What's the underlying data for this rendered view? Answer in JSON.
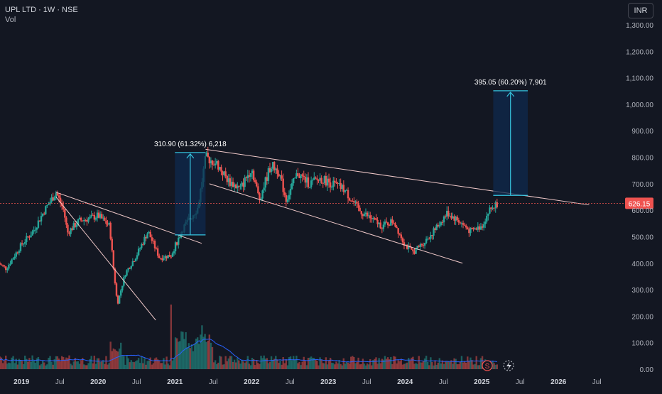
{
  "header": {
    "symbol_line": "UPL LTD · 1W · NSE",
    "volume_label": "Vol"
  },
  "currency_button": "INR",
  "colors": {
    "background": "#131722",
    "up": "#26a69a",
    "down": "#ef5350",
    "trendline": "#f0c9c9",
    "measure_line": "#36c5e0",
    "measure_fill": "#0f2a4d",
    "volume_ma": "#2962ff",
    "price_label_bg": "#ef5350"
  },
  "icons": [
    "dividend-s-icon",
    "lightning-icon"
  ],
  "chart_data": {
    "type": "candlestick",
    "price_axis_ticks": [
      "1,300.00",
      "1,200.00",
      "1,100.00",
      "1,000.00",
      "900.00",
      "800.00",
      "700.00",
      "600.00",
      "500.00",
      "400.00",
      "300.00",
      "200.00",
      "100.00",
      "0.00"
    ],
    "time_axis_ticks": [
      "2019",
      "Jul",
      "2020",
      "Jul",
      "2021",
      "Jul",
      "2022",
      "Jul",
      "2023",
      "Jul",
      "2024",
      "Jul",
      "2025",
      "Jul",
      "2026",
      "Jul"
    ],
    "last_price": "626.15",
    "ylim": [
      0,
      1300
    ],
    "xlim": [
      "2018-09",
      "2026-09"
    ],
    "annotations": [
      {
        "text": "310.90 (61.32%) 6,218",
        "from_price": 507,
        "to_price": 818,
        "start": "2021.0",
        "end": "2021.4"
      },
      {
        "text": "395.05 (60.20%) 7,901",
        "from_price": 656,
        "to_price": 1051,
        "start": "2025.15",
        "end": "2025.6"
      }
    ],
    "weekly_close_path": [
      [
        "2018.7",
        400
      ],
      [
        "2018.8",
        380
      ],
      [
        "2019.0",
        470
      ],
      [
        "2019.15",
        520
      ],
      [
        "2019.3",
        600
      ],
      [
        "2019.45",
        668
      ],
      [
        "2019.55",
        600
      ],
      [
        "2019.6",
        515
      ],
      [
        "2019.75",
        560
      ],
      [
        "2019.9",
        570
      ],
      [
        "2020.0",
        580
      ],
      [
        "2020.15",
        540
      ],
      [
        "2020.2",
        380
      ],
      [
        "2020.25",
        245
      ],
      [
        "2020.35",
        360
      ],
      [
        "2020.5",
        430
      ],
      [
        "2020.65",
        520
      ],
      [
        "2020.8",
        420
      ],
      [
        "2020.95",
        430
      ],
      [
        "2021.1",
        530
      ],
      [
        "2021.3",
        610
      ],
      [
        "2021.4",
        800
      ],
      [
        "2021.55",
        775
      ],
      [
        "2021.7",
        710
      ],
      [
        "2021.85",
        680
      ],
      [
        "2022.0",
        760
      ],
      [
        "2022.1",
        640
      ],
      [
        "2022.25",
        770
      ],
      [
        "2022.35",
        750
      ],
      [
        "2022.45",
        640
      ],
      [
        "2022.6",
        740
      ],
      [
        "2022.75",
        700
      ],
      [
        "2022.9",
        720
      ],
      [
        "2023.05",
        700
      ],
      [
        "2023.2",
        680
      ],
      [
        "2023.4",
        600
      ],
      [
        "2023.55",
        570
      ],
      [
        "2023.7",
        540
      ],
      [
        "2023.85",
        560
      ],
      [
        "2024.0",
        470
      ],
      [
        "2024.1",
        440
      ],
      [
        "2024.25",
        480
      ],
      [
        "2024.4",
        530
      ],
      [
        "2024.55",
        590
      ],
      [
        "2024.7",
        560
      ],
      [
        "2024.85",
        520
      ],
      [
        "2025.0",
        540
      ],
      [
        "2025.1",
        600
      ],
      [
        "2025.2",
        626
      ]
    ],
    "trendlines": [
      {
        "from": [
          "2019.45",
          668
        ],
        "to": [
          "2021.35",
          475
        ]
      },
      {
        "from": [
          "2019.45",
          650
        ],
        "to": [
          "2020.75",
          185
        ]
      },
      {
        "from": [
          "2021.4",
          830
        ],
        "to": [
          "2026.4",
          620
        ]
      },
      {
        "from": [
          "2021.45",
          700
        ],
        "to": [
          "2024.75",
          400
        ]
      }
    ],
    "grid": false,
    "legend": "none"
  }
}
